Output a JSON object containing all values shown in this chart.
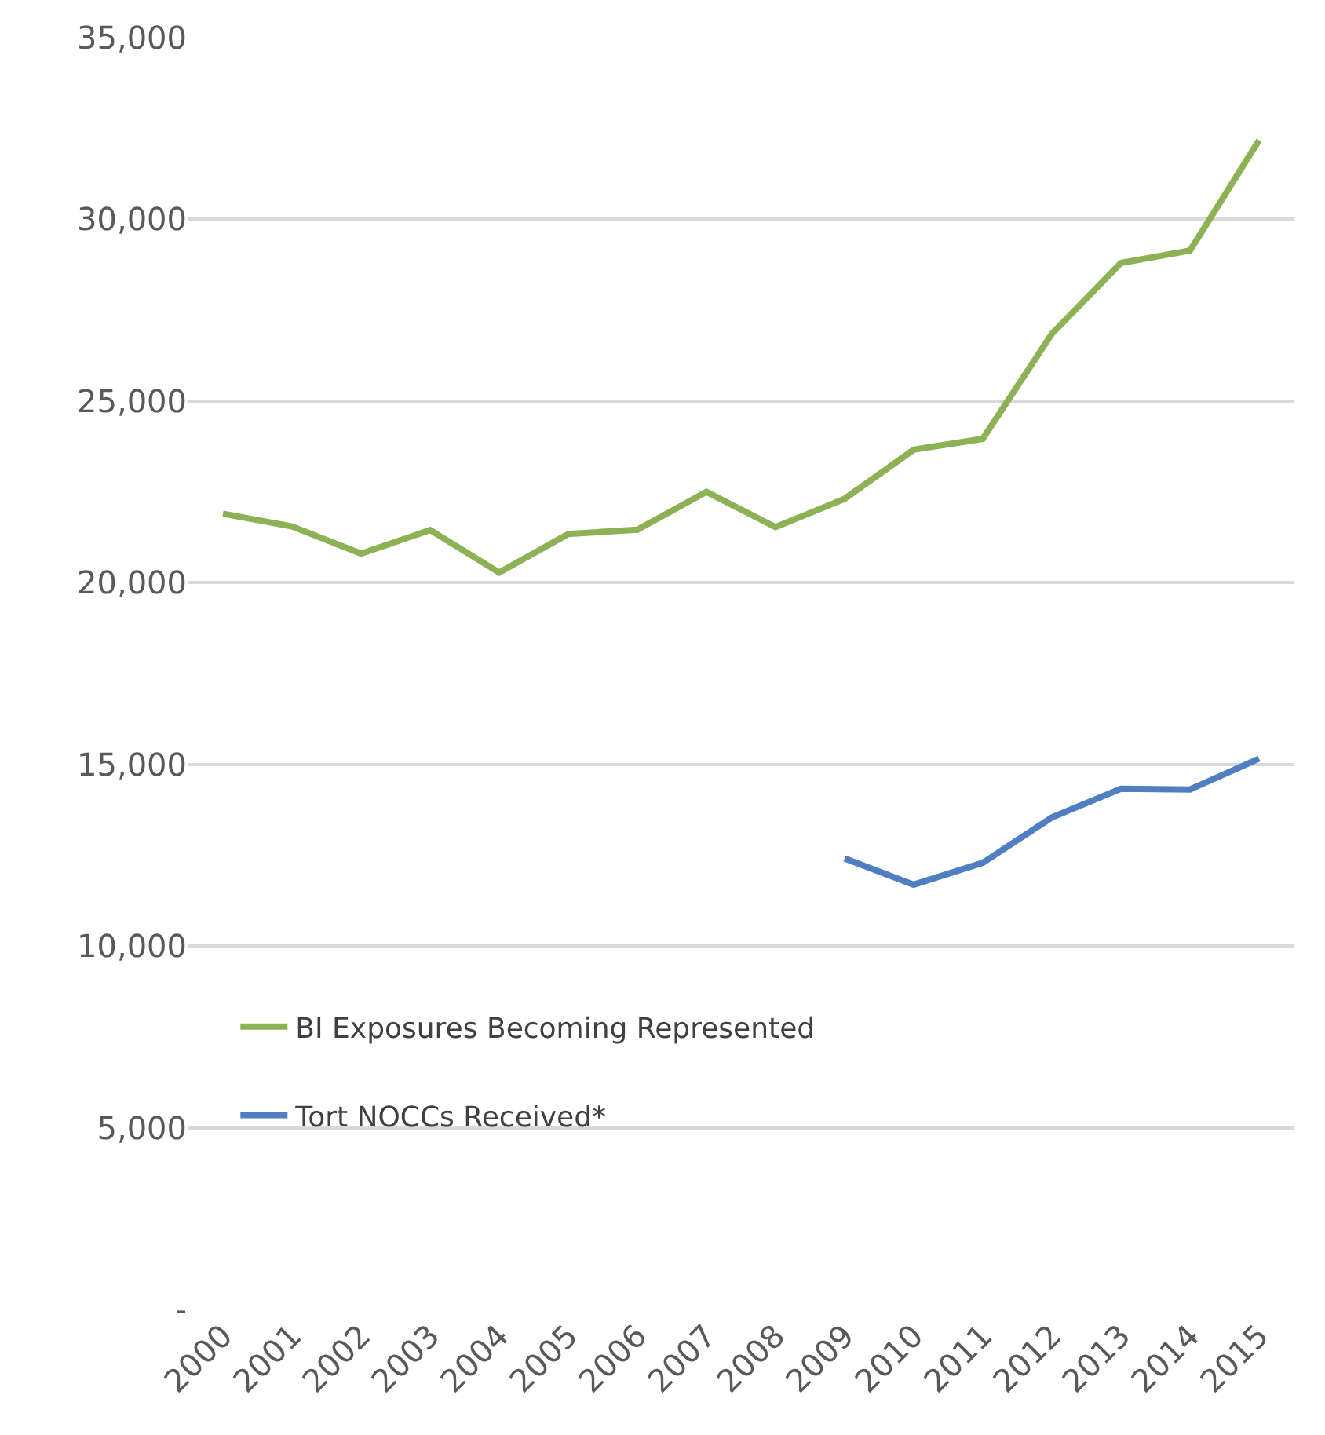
{
  "chart_data": {
    "type": "line",
    "categories": [
      "2000",
      "2001",
      "2002",
      "2003",
      "2004",
      "2005",
      "2006",
      "2007",
      "2008",
      "2009",
      "2010",
      "2011",
      "2012",
      "2013",
      "2014",
      "2015"
    ],
    "series": [
      {
        "name": "BI Exposures Becoming Represented",
        "color": "#8db255",
        "values": [
          21900,
          21550,
          20800,
          21450,
          20280,
          21340,
          21460,
          22500,
          21530,
          22310,
          23660,
          23960,
          26850,
          28800,
          29140,
          32180
        ]
      },
      {
        "name": "Tort NOCCs Received*",
        "color": "#4f7ec1",
        "values": [
          null,
          null,
          null,
          null,
          null,
          null,
          null,
          null,
          null,
          12410,
          11690,
          12290,
          13540,
          14330,
          14310,
          15160
        ]
      }
    ],
    "ylim": [
      0,
      35000
    ],
    "yticks": [
      {
        "value": 0,
        "label": "-"
      },
      {
        "value": 5000,
        "label": "5,000"
      },
      {
        "value": 10000,
        "label": "10,000"
      },
      {
        "value": 15000,
        "label": "15,000"
      },
      {
        "value": 20000,
        "label": "20,000"
      },
      {
        "value": 25000,
        "label": "25,000"
      },
      {
        "value": 30000,
        "label": "30,000"
      },
      {
        "value": 35000,
        "label": "35,000"
      }
    ],
    "grid": "y",
    "legend": "bottom left",
    "marker": "none",
    "line_style": "solid"
  }
}
